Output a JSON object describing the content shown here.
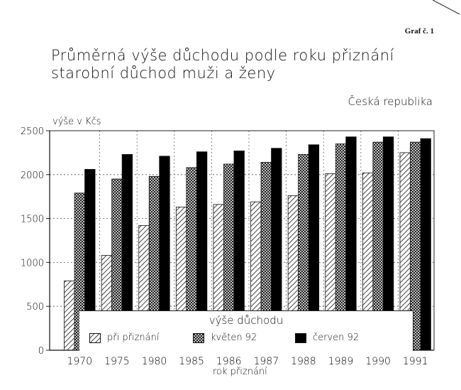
{
  "page_label": "Graf č. 1",
  "title_line1": "Průměrná výše důchodu podle roku  přiznání",
  "title_line2": "starobní důchod  muži a ženy",
  "region": "Česká republika",
  "chart_data": {
    "type": "bar",
    "ylabel": "výše v Kčs",
    "xlabel": "rok přiznání",
    "ylim": [
      0,
      2500
    ],
    "yticks": [
      0,
      500,
      1000,
      1500,
      2000,
      2500
    ],
    "categories": [
      "1970",
      "1975",
      "1980",
      "1985",
      "1986",
      "1987",
      "1988",
      "1989",
      "1990",
      "1991"
    ],
    "legend_title": "výše důchodu",
    "series": [
      {
        "name": "při přiznání",
        "values": [
          790,
          1080,
          1420,
          1630,
          1660,
          1690,
          1760,
          2010,
          2020,
          2250
        ],
        "fill": "hatch"
      },
      {
        "name": "květen 92",
        "values": [
          1790,
          1950,
          1980,
          2080,
          2120,
          2140,
          2230,
          2350,
          2370,
          2370
        ],
        "fill": "crosshatch"
      },
      {
        "name": "červen 92",
        "values": [
          2060,
          2230,
          2210,
          2260,
          2270,
          2300,
          2340,
          2430,
          2430,
          2410
        ],
        "fill": "black"
      }
    ]
  }
}
